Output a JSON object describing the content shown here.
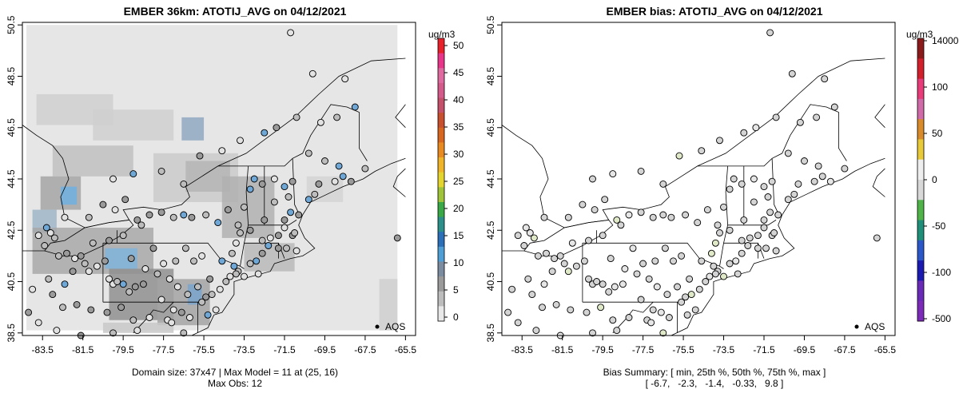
{
  "left_panel": {
    "title": "EMBER 36km: ATOTIJ_AVG on 04/12/2021",
    "caption_line1": "Domain size: 37x47 | Max Model = 11 at (25, 16)",
    "caption_line2": "Max Obs: 12",
    "legend_label": "AQS",
    "colorbar_unit": "ug/m3",
    "colorbar_ticks": [
      "0",
      "5",
      "10",
      "15",
      "20",
      "25",
      "30",
      "35",
      "40",
      "45",
      "50"
    ],
    "colorbar_colors": [
      "#e8e8e8",
      "#bdbdbd",
      "#9a9a9a",
      "#7b8ba0",
      "#4f9fd6",
      "#2a6fb8",
      "#2c8f8a",
      "#39a846",
      "#9fc43a",
      "#e4d42e",
      "#f0b429",
      "#e98a21",
      "#d9661e",
      "#c8502f",
      "#c5506a",
      "#d45a8c",
      "#e06aa0",
      "#e8358a",
      "#e8202a"
    ],
    "colorbar_range": [
      0,
      50
    ]
  },
  "right_panel": {
    "title": "EMBER bias: ATOTIJ_AVG on 04/12/2021",
    "caption_line1": "Bias Summary: [ min, 25th %, 50th %, 75th %, max ]",
    "caption_line2": "[ -6.7,   -2.3,   -1.4,   -0.33,   9.8 ]",
    "legend_label": "AQS",
    "colorbar_unit": "ug/m3",
    "colorbar_ticks": [
      "14000",
      "100",
      "50",
      "0",
      "-50",
      "-100",
      "-500"
    ],
    "colorbar_colors": [
      "#8b1a1a",
      "#d11f2c",
      "#e83c7a",
      "#d06aa8",
      "#d98a2a",
      "#e8c93a",
      "#eeeeee",
      "#d8d8d8",
      "#4fb34a",
      "#1f8f7a",
      "#2c57c8",
      "#1a1ab0",
      "#6a2ab8",
      "#7b2bb8"
    ]
  },
  "map": {
    "x_ticks": [
      "-83.5",
      "-81.5",
      "-79.5",
      "-77.5",
      "-75.5",
      "-73.5",
      "-71.5",
      "-69.5",
      "-67.5",
      "-65.5"
    ],
    "y_ticks": [
      "38.5",
      "40.5",
      "42.5",
      "44.5",
      "46.5",
      "48.5",
      "50.5"
    ],
    "xlim": [
      -84.5,
      -65.0
    ],
    "ylim": [
      38.4,
      50.6
    ]
  }
}
